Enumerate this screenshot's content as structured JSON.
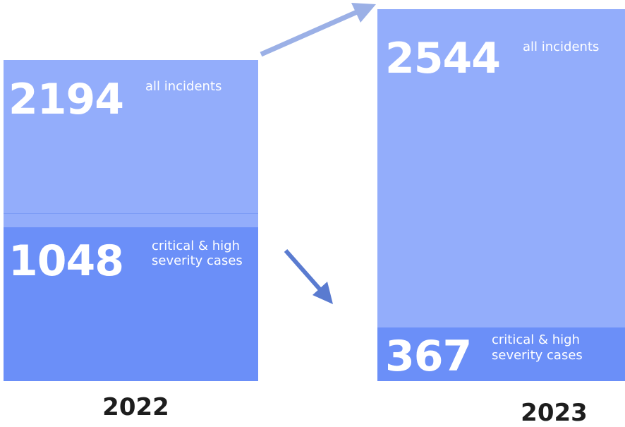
{
  "chart_data": {
    "type": "bar",
    "categories": [
      "2022",
      "2023"
    ],
    "series": [
      {
        "name": "all incidents",
        "values": [
          2194,
          2544
        ]
      },
      {
        "name": "critical & high severity cases",
        "values": [
          1048,
          367
        ]
      }
    ],
    "labels": {
      "all": "all incidents",
      "crit_line1": "critical & high",
      "crit_line2": "severity cases"
    },
    "display": {
      "y2022_all": "2194",
      "y2022_crit": "1048",
      "y2023_all": "2544",
      "y2023_crit": "367"
    },
    "title": "",
    "xlabel": "",
    "ylabel": "",
    "colors": {
      "all": "#93adfb",
      "crit": "#6b8ff8",
      "arrow_up": "#9bb0e6",
      "arrow_down": "#5a7bd0"
    }
  }
}
